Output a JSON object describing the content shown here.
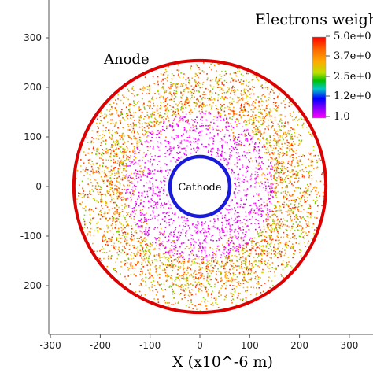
{
  "chart_data": {
    "type": "scatter",
    "title": "Electrons weigh",
    "xlabel": "X (x10^-6 m)",
    "ylabel": "",
    "xlim": [
      -305,
      320
    ],
    "ylim": [
      -300,
      340
    ],
    "x_ticks": [
      -300,
      -200,
      -100,
      0,
      100,
      200,
      300
    ],
    "y_ticks": [
      -200,
      -100,
      0,
      100,
      200,
      300
    ],
    "x_tick_labels": [
      "-300",
      "-200",
      "-100",
      "0",
      "100",
      "200",
      "300"
    ],
    "y_tick_labels": [
      "-200",
      "-100",
      "0",
      "100",
      "200",
      "300"
    ],
    "grid": false,
    "legend_position": "top-right",
    "colorbar": {
      "min": 1.0,
      "max": 5.0,
      "labels": [
        "5.0e+0",
        "3.7e+0",
        "2.5e+0",
        "1.2e+0",
        "1.0"
      ],
      "stops": [
        "#ff0000",
        "#ff7f00",
        "#00c000",
        "#0000ff",
        "#ff00ff"
      ]
    },
    "electrodes": [
      {
        "name": "Anode",
        "label": "Anode",
        "cx": 0,
        "cy": 0,
        "r": 253,
        "color": "#dd0000"
      },
      {
        "name": "Cathode",
        "label": "Cathode",
        "cx": 0,
        "cy": 0,
        "r": 60,
        "color": "#1a1adb"
      }
    ],
    "distribution": {
      "points": 5200,
      "inner_radius": 60,
      "outer_radius": 253,
      "ring_center_radius": 185,
      "colors": {
        "outer": [
          "#ff2a00",
          "#ff5500",
          "#ff8800",
          "#ffaa00",
          "#e0d000",
          "#7bd000"
        ],
        "mid": [
          "#ff7700",
          "#ffb000",
          "#cc00cc",
          "#ff00ff"
        ],
        "inner": [
          "#ff00ff",
          "#dd00ff",
          "#ff44ff"
        ]
      }
    }
  }
}
